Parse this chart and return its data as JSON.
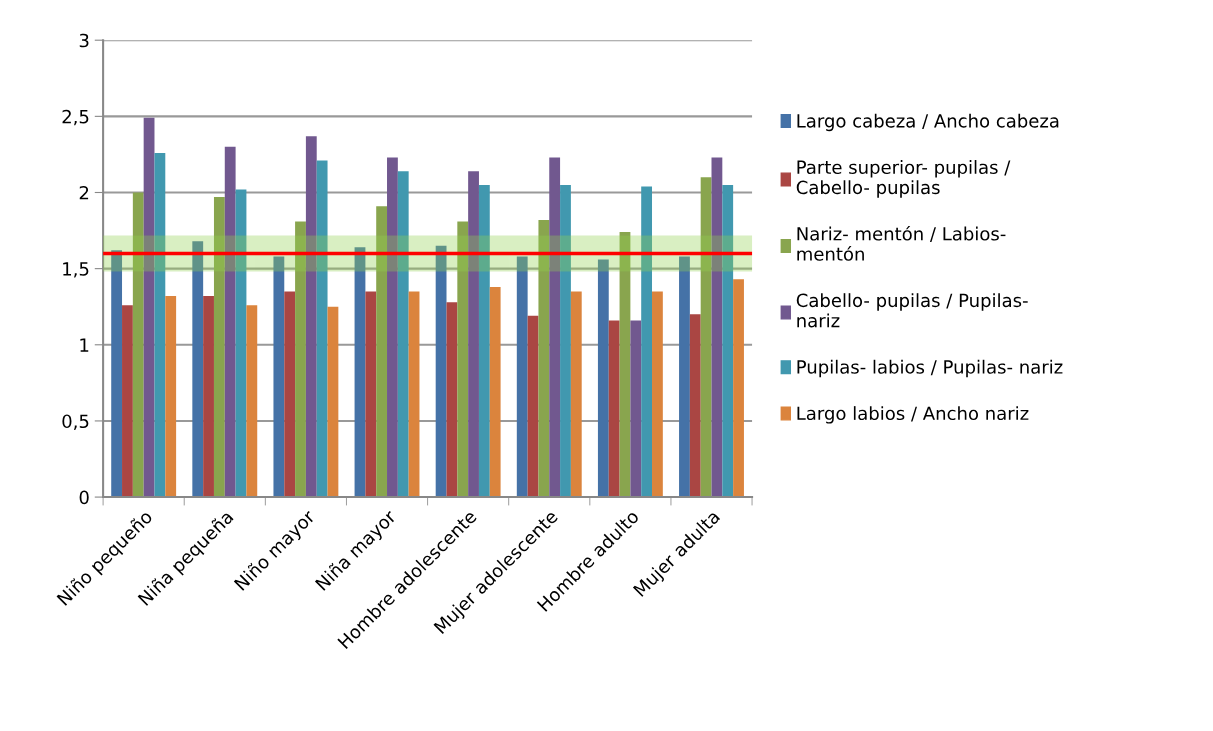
{
  "chart_data": {
    "type": "bar",
    "categories": [
      "Niño pequeño",
      "Niña pequeña",
      "Niño mayor",
      "Niña mayor",
      "Hombre adolescente",
      "Mujer adolescente",
      "Hombre adulto",
      "Mujer adulta"
    ],
    "series": [
      {
        "name": "Largo cabeza / Ancho cabeza",
        "color": "#4572a7",
        "values": [
          1.62,
          1.68,
          1.58,
          1.64,
          1.65,
          1.58,
          1.56,
          1.58
        ]
      },
      {
        "name": "Parte superior- pupilas /\nCabello- pupilas",
        "color": "#aa4643",
        "values": [
          1.26,
          1.32,
          1.35,
          1.35,
          1.28,
          1.19,
          1.16,
          1.2
        ]
      },
      {
        "name": "Nariz- mentón / Labios-\nmentón",
        "color": "#89a54e",
        "values": [
          2.0,
          1.97,
          1.81,
          1.91,
          1.81,
          1.82,
          1.74,
          2.1
        ]
      },
      {
        "name": "Cabello- pupilas / Pupilas-\nnariz",
        "color": "#71588f",
        "values": [
          2.49,
          2.3,
          2.37,
          2.23,
          2.14,
          2.23,
          1.16,
          2.23
        ]
      },
      {
        "name": "Pupilas- labios / Pupilas- nariz",
        "color": "#4198af",
        "values": [
          2.26,
          2.02,
          2.21,
          2.14,
          2.05,
          2.05,
          2.04,
          2.05
        ]
      },
      {
        "name": "Largo labios / Ancho nariz",
        "color": "#db843d",
        "values": [
          1.32,
          1.26,
          1.25,
          1.35,
          1.38,
          1.35,
          1.35,
          1.43
        ]
      }
    ],
    "ylim": [
      0,
      3
    ],
    "yticks": [
      {
        "value": 0,
        "label": "0"
      },
      {
        "value": 0.5,
        "label": "0,5"
      },
      {
        "value": 1,
        "label": "1"
      },
      {
        "value": 1.5,
        "label": "1,5"
      },
      {
        "value": 2,
        "label": "2"
      },
      {
        "value": 2.5,
        "label": "2,5"
      },
      {
        "value": 3,
        "label": "3"
      }
    ],
    "grid": "y",
    "legend": "right",
    "bands": [
      {
        "axis": "y",
        "from": 1.5,
        "to": 1.7,
        "color": "#92d050"
      }
    ],
    "ref_lines": [
      {
        "axis": "y",
        "value": 1.6,
        "color": "#ff0000",
        "line_style": "solid"
      }
    ]
  }
}
